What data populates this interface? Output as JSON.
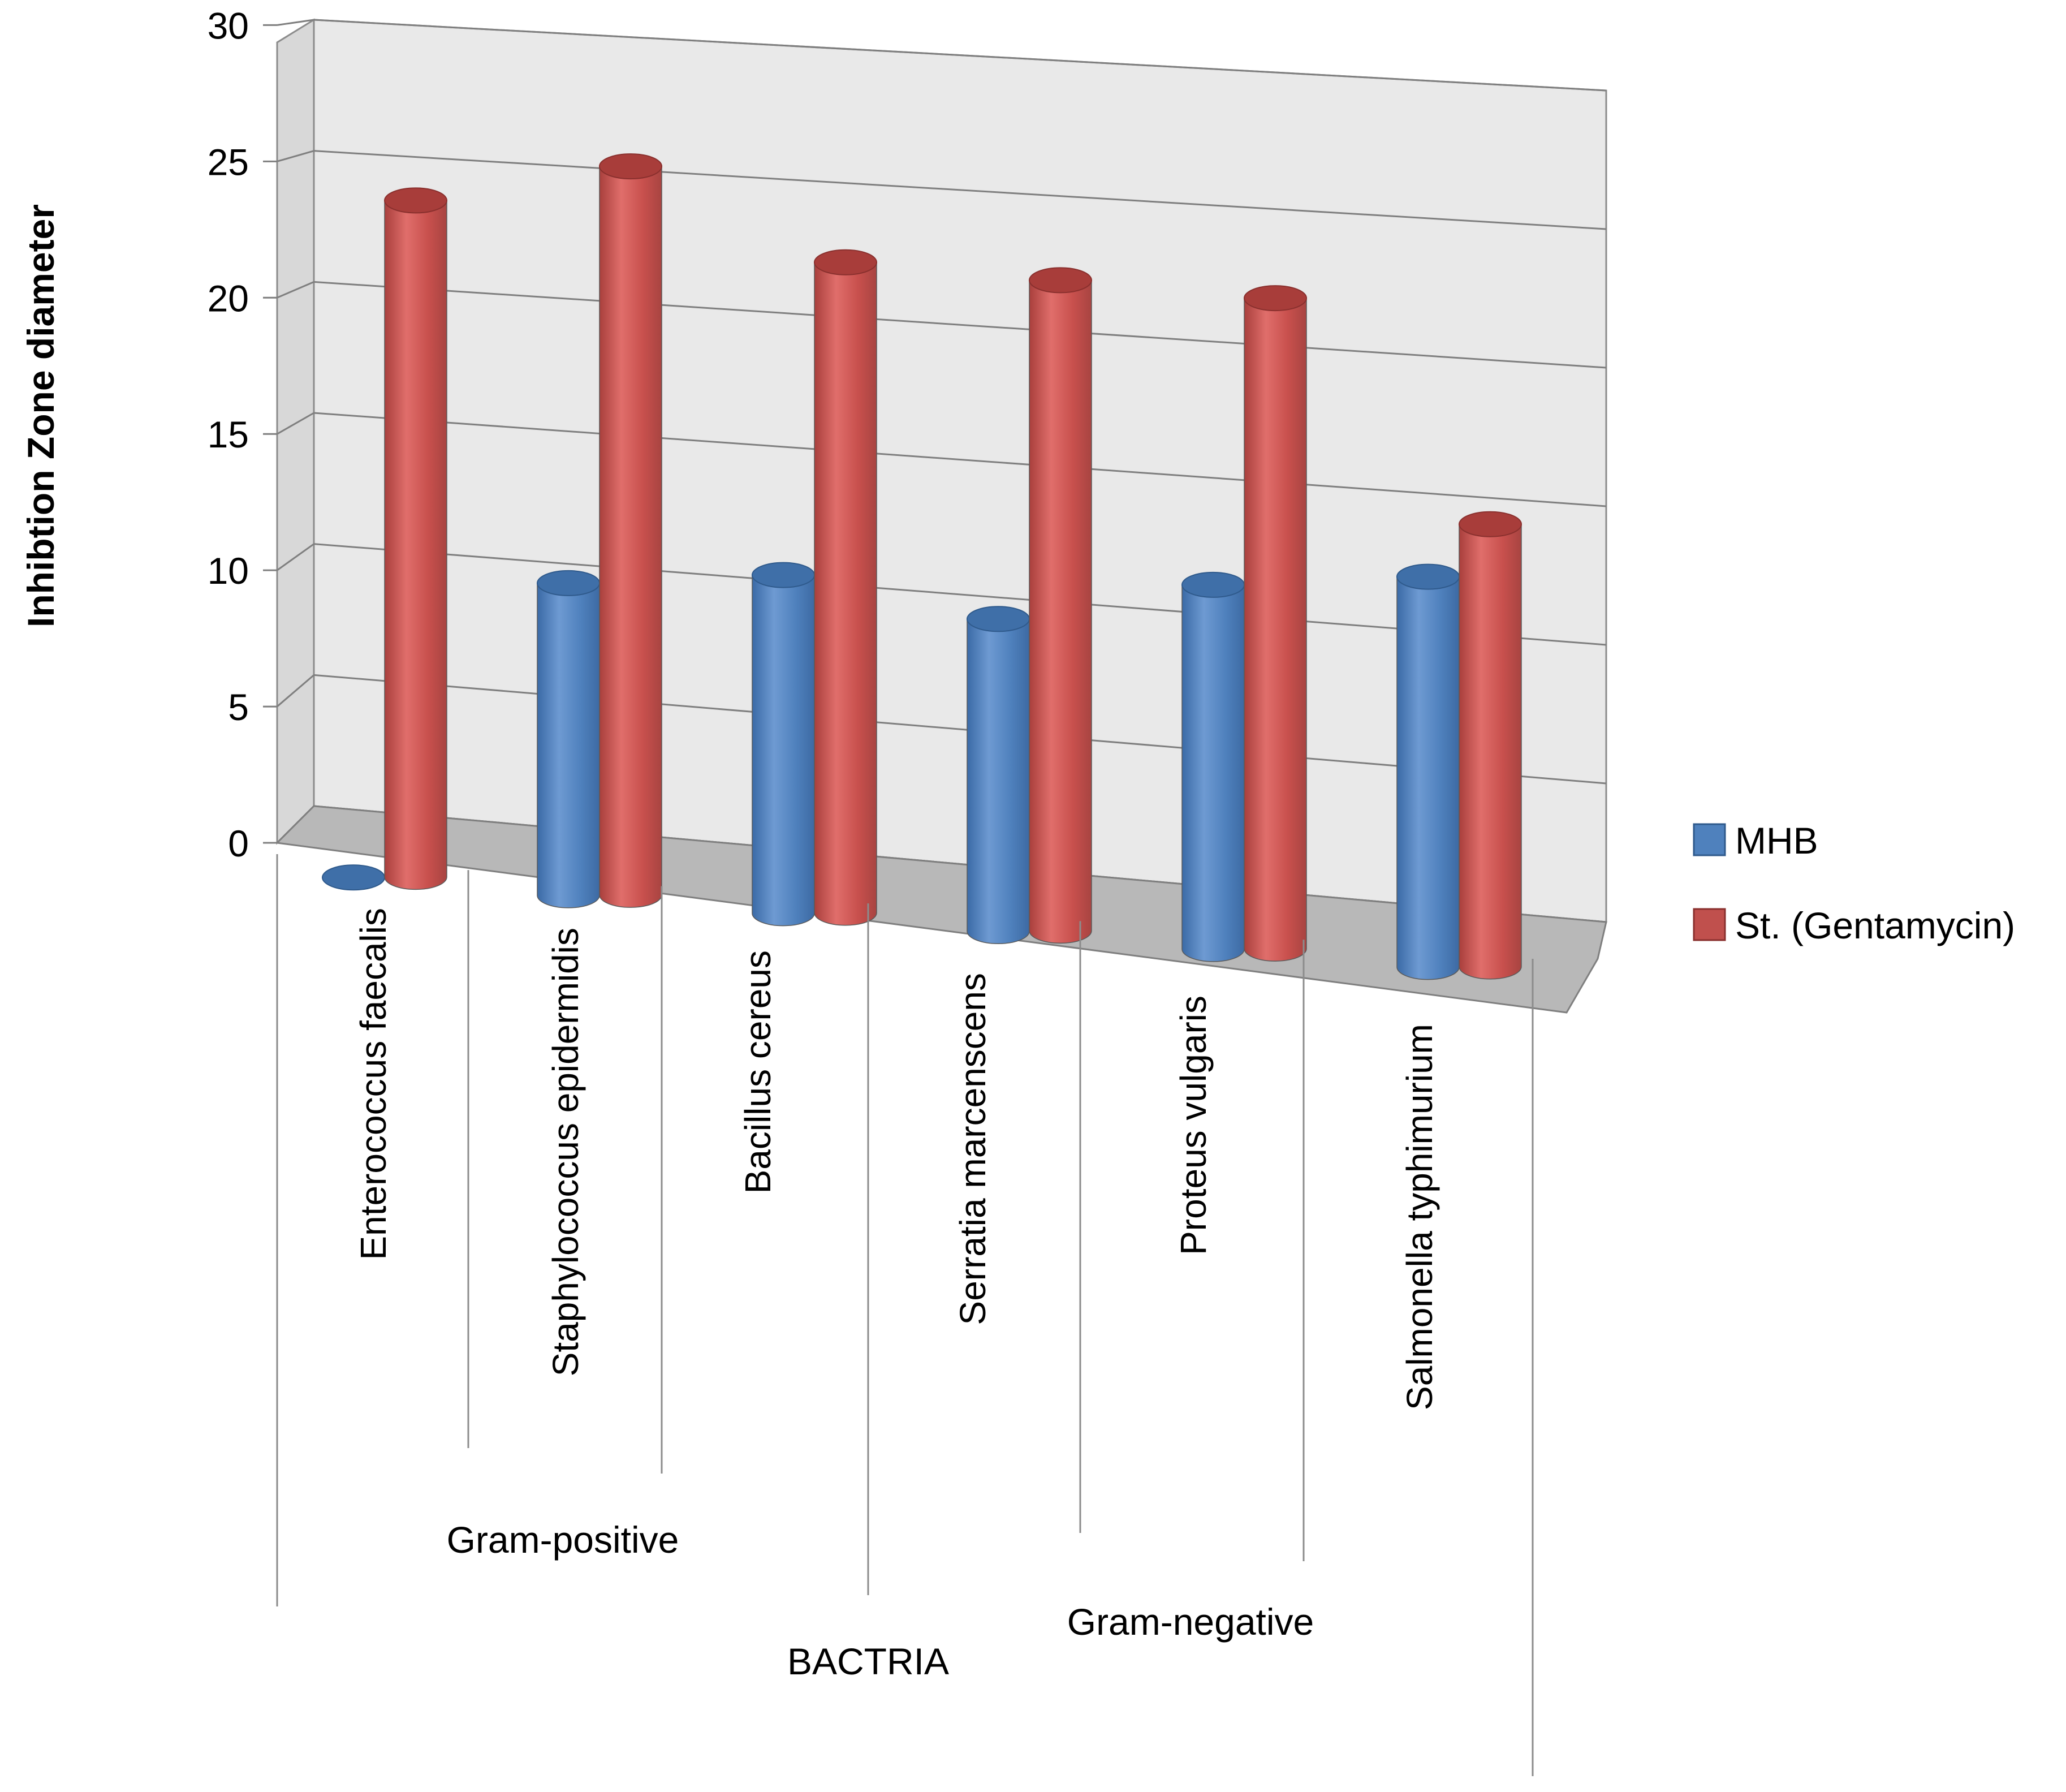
{
  "chart_data": {
    "type": "bar",
    "style": "3d-cylinder",
    "title": "",
    "ylabel": "Inhibtion Zone diameter",
    "xlabel": "BACTRIA",
    "ylim": [
      0,
      30
    ],
    "yticks": [
      0,
      5,
      10,
      15,
      20,
      25,
      30
    ],
    "grid": true,
    "legend_position": "right",
    "categories": [
      "Enterococcus faecalis",
      "Staphylococcus epidermidis",
      "Bacillus cereus",
      "Serratia marcenscens",
      "Proteus vulgaris",
      "Salmonella typhimurium"
    ],
    "groups": [
      {
        "label": "Gram-positive",
        "categories": [
          "Enterococcus faecalis",
          "Staphylococcus epidermidis",
          "Bacillus cereus"
        ]
      },
      {
        "label": "Gram-negative",
        "categories": [
          "Serratia marcenscens",
          "Proteus vulgaris",
          "Salmonella typhimurium"
        ]
      }
    ],
    "series": [
      {
        "name": "MHB",
        "color": "#4f81bd",
        "values": [
          0,
          12,
          13,
          12,
          14,
          15
        ]
      },
      {
        "name": "St. (Gentamycin)",
        "color": "#c0504d",
        "values": [
          26,
          28,
          25,
          25,
          25,
          17
        ]
      }
    ]
  }
}
